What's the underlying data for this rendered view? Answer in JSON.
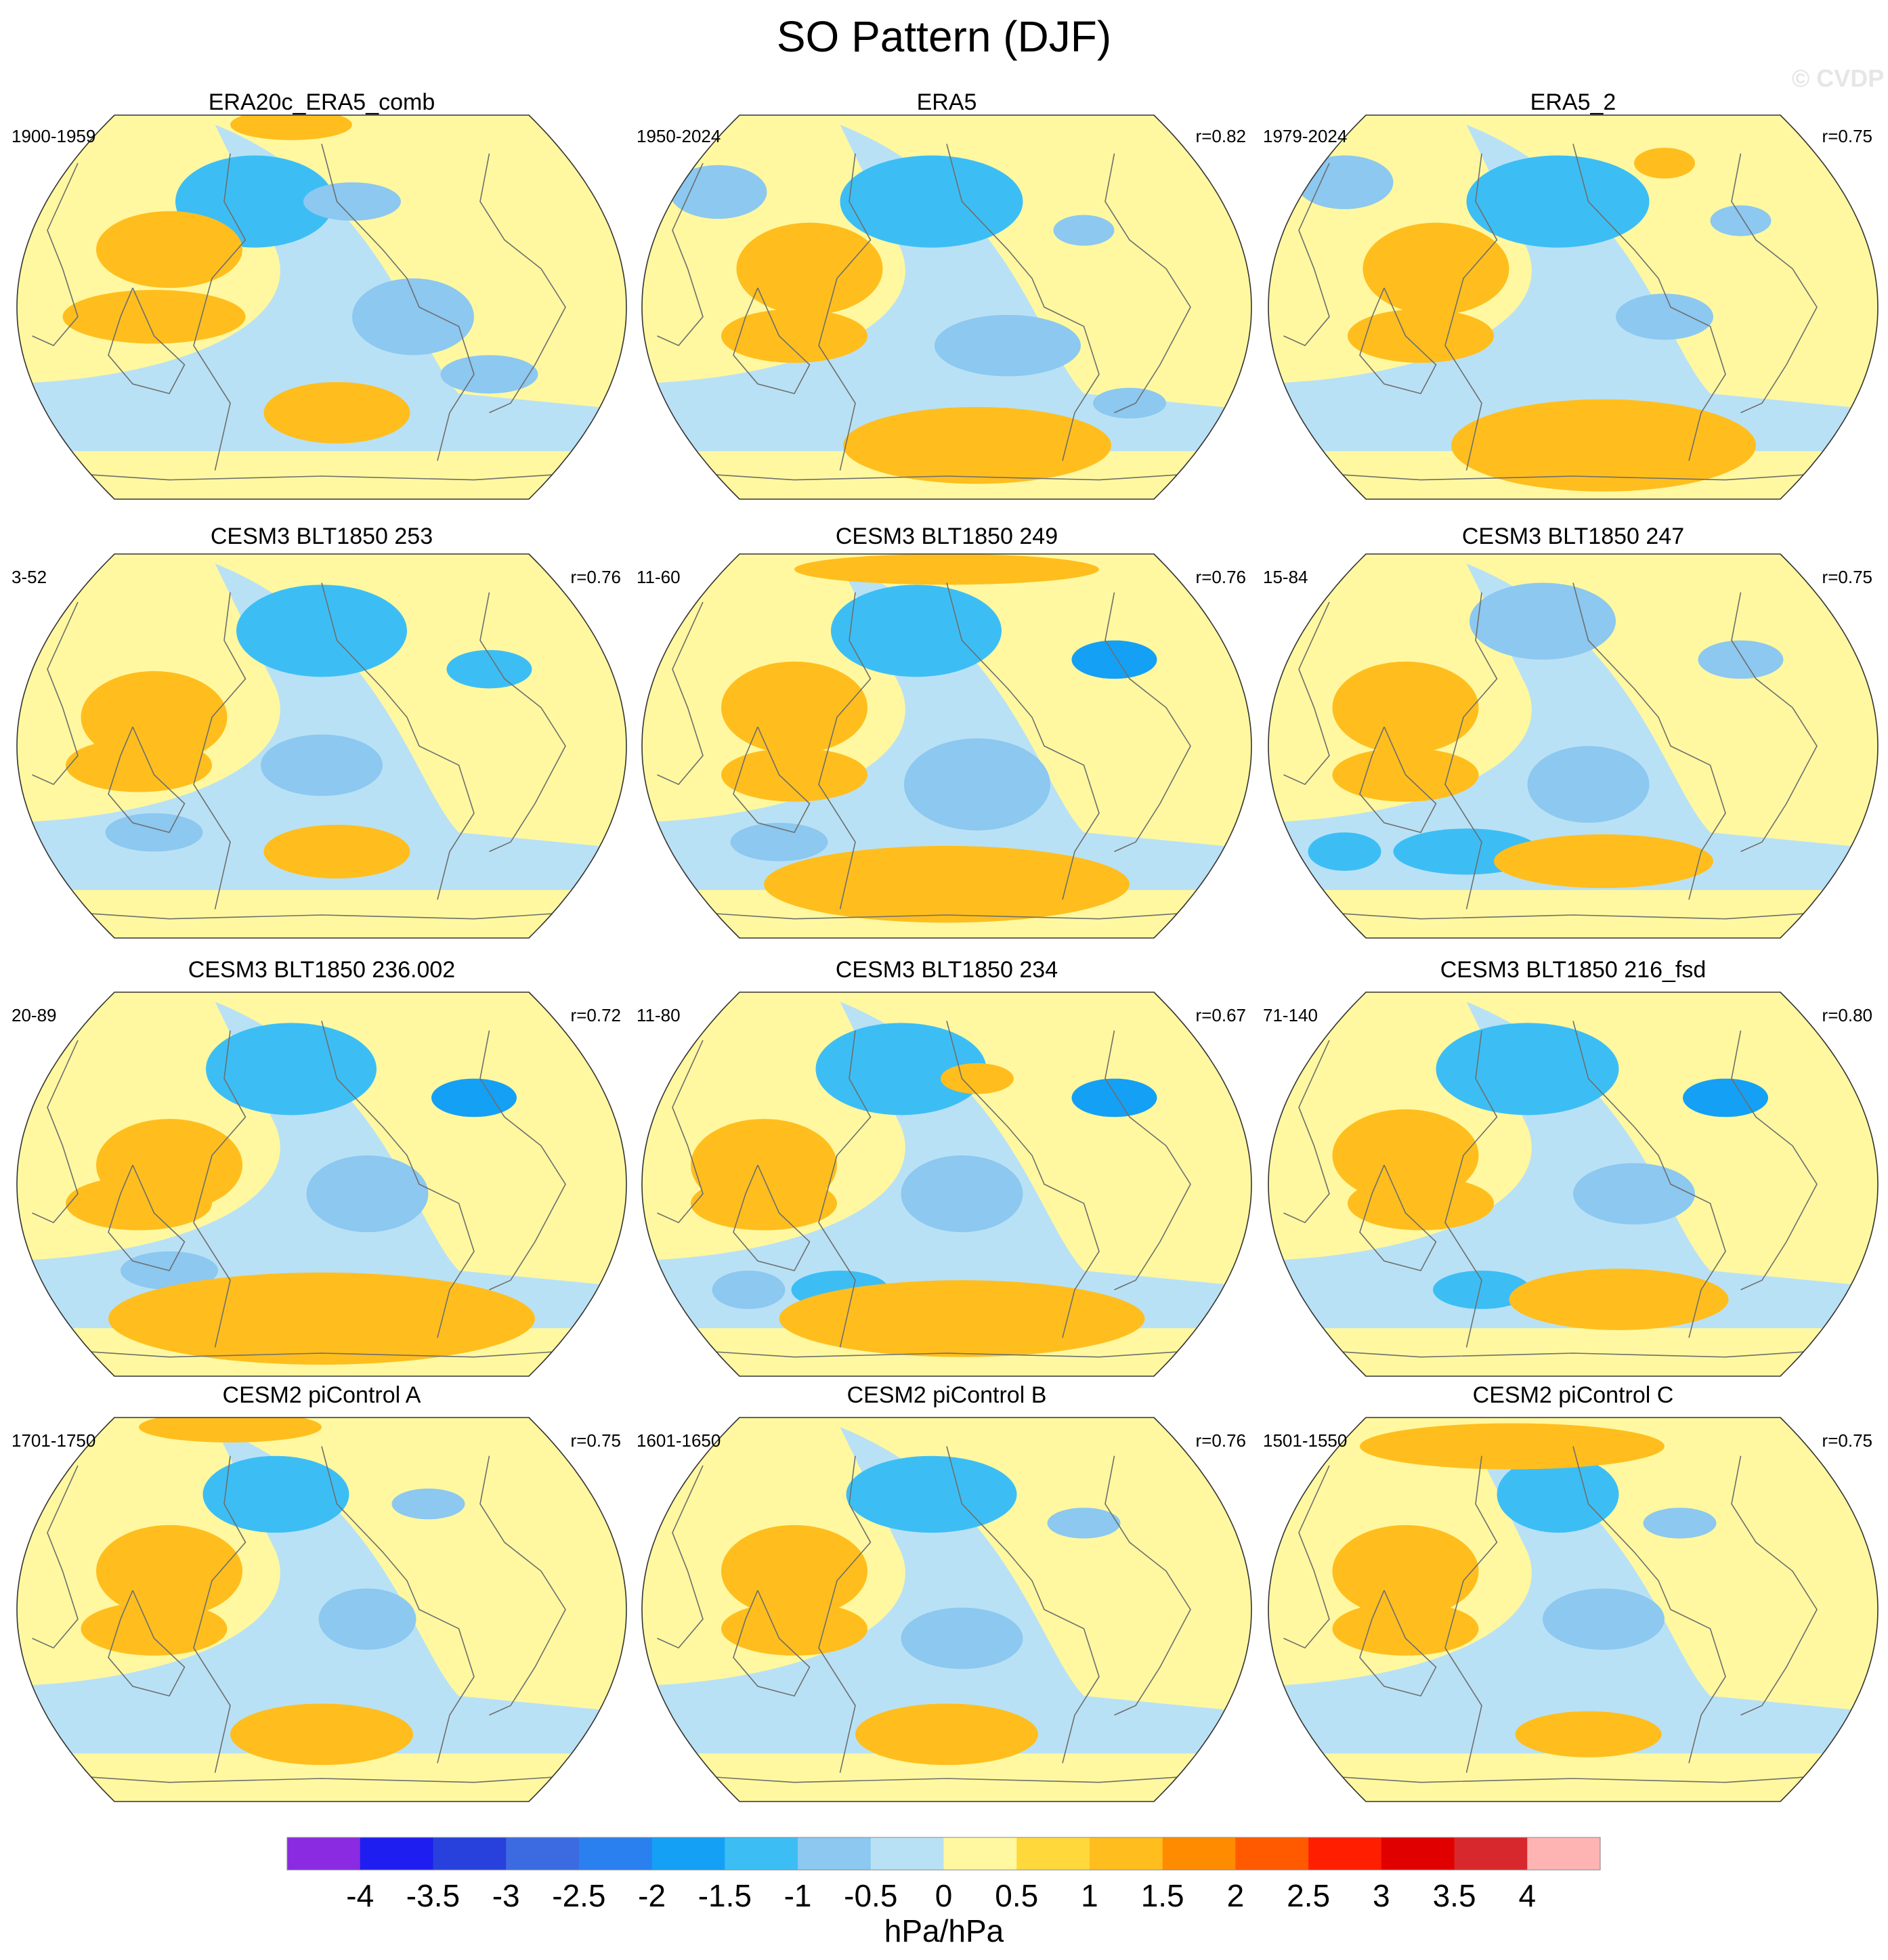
{
  "figure": {
    "title": "SO Pattern (DJF)",
    "watermark": "© CVDP"
  },
  "chart_data": {
    "type": "map-panels",
    "projection": "robinson",
    "colorbar": {
      "label": "hPa/hPa",
      "tick_labels": [
        "-4",
        "-3.5",
        "-3",
        "-2.5",
        "-2",
        "-1.5",
        "-1",
        "-0.5",
        "0",
        "0.5",
        "1",
        "1.5",
        "2",
        "2.5",
        "3",
        "3.5",
        "4"
      ],
      "colors": [
        "#8a2be2",
        "#1e1ef0",
        "#2840dc",
        "#3c6ae1",
        "#2b80f0",
        "#14a0f5",
        "#3cbef5",
        "#8cc8f0",
        "#b9e1f5",
        "#fff8a0",
        "#ffd83c",
        "#ffbe1e",
        "#ff8c00",
        "#ff5a00",
        "#ff1e00",
        "#e10000",
        "#d7282d",
        "#ffb4b4"
      ]
    },
    "panels": [
      {
        "title": "ERA20c_ERA5_comb",
        "years": "1900-1959",
        "r": "",
        "blobs": [
          [
            -0.22,
            0.55,
            0.07,
            0.08,
            -2.5
          ],
          [
            -0.22,
            0.55,
            0.13,
            0.12,
            -1.5
          ],
          [
            0.1,
            0.55,
            0.08,
            0.05,
            -1
          ],
          [
            0.3,
            -0.05,
            0.1,
            0.1,
            -1
          ],
          [
            0.55,
            -0.35,
            0.08,
            0.05,
            -1
          ],
          [
            -0.5,
            0.3,
            0.12,
            0.1,
            1
          ],
          [
            -0.55,
            -0.05,
            0.15,
            0.07,
            1
          ],
          [
            0.05,
            -0.55,
            0.08,
            0.05,
            1.5
          ],
          [
            0.05,
            -0.55,
            0.12,
            0.08,
            1
          ],
          [
            -0.1,
            0.95,
            0.1,
            0.04,
            1
          ]
        ]
      },
      {
        "title": "ERA5",
        "years": "1950-2024",
        "r": "r=0.82",
        "blobs": [
          [
            -0.05,
            0.55,
            0.08,
            0.08,
            -2.5
          ],
          [
            -0.05,
            0.55,
            0.15,
            0.12,
            -1.5
          ],
          [
            -0.75,
            0.6,
            0.08,
            0.07,
            -1
          ],
          [
            0.45,
            0.4,
            0.05,
            0.04,
            -1
          ],
          [
            0.2,
            -0.2,
            0.12,
            0.08,
            -1
          ],
          [
            0.6,
            -0.5,
            0.06,
            0.04,
            -1
          ],
          [
            -0.45,
            0.2,
            0.12,
            0.12,
            1
          ],
          [
            -0.5,
            -0.15,
            0.12,
            0.07,
            1
          ],
          [
            0.1,
            -0.75,
            0.1,
            0.06,
            1.5
          ],
          [
            0.1,
            -0.72,
            0.22,
            0.1,
            1
          ]
        ]
      },
      {
        "title": "ERA5_2",
        "years": "1979-2024",
        "r": "r=0.75",
        "blobs": [
          [
            -0.05,
            0.55,
            0.08,
            0.08,
            -3
          ],
          [
            -0.05,
            0.55,
            0.15,
            0.12,
            -1.5
          ],
          [
            -0.75,
            0.65,
            0.08,
            0.07,
            -1
          ],
          [
            0.55,
            0.45,
            0.05,
            0.04,
            -1
          ],
          [
            0.3,
            -0.05,
            0.08,
            0.06,
            -1
          ],
          [
            -0.45,
            0.2,
            0.12,
            0.12,
            1
          ],
          [
            -0.5,
            -0.15,
            0.12,
            0.07,
            1
          ],
          [
            0.1,
            -0.75,
            0.12,
            0.06,
            1.5
          ],
          [
            0.1,
            -0.72,
            0.25,
            0.12,
            1
          ],
          [
            0.3,
            0.75,
            0.05,
            0.04,
            1
          ]
        ]
      },
      {
        "title": "CESM3 BLT1850 253",
        "years": "3-52",
        "r": "r=0.76",
        "blobs": [
          [
            0.0,
            0.65,
            0.06,
            0.06,
            -2
          ],
          [
            0.0,
            0.6,
            0.14,
            0.12,
            -1.5
          ],
          [
            0.55,
            0.4,
            0.07,
            0.05,
            -1.5
          ],
          [
            0.0,
            -0.1,
            0.1,
            0.08,
            -1
          ],
          [
            -0.55,
            -0.45,
            0.08,
            0.05,
            -1
          ],
          [
            -0.55,
            0.15,
            0.12,
            0.12,
            1
          ],
          [
            -0.6,
            -0.1,
            0.12,
            0.07,
            1
          ],
          [
            0.05,
            -0.55,
            0.08,
            0.04,
            1.5
          ],
          [
            0.05,
            -0.55,
            0.12,
            0.07,
            1
          ]
        ]
      },
      {
        "title": "CESM3 BLT1850 249",
        "years": "11-60",
        "r": "r=0.76",
        "blobs": [
          [
            -0.1,
            0.6,
            0.06,
            0.06,
            -2
          ],
          [
            -0.1,
            0.6,
            0.14,
            0.12,
            -1.5
          ],
          [
            0.55,
            0.45,
            0.07,
            0.05,
            -2
          ],
          [
            0.1,
            -0.2,
            0.12,
            0.12,
            -1
          ],
          [
            -0.55,
            -0.5,
            0.08,
            0.05,
            -1
          ],
          [
            -0.5,
            0.2,
            0.12,
            0.12,
            1
          ],
          [
            -0.5,
            -0.15,
            0.12,
            0.07,
            1
          ],
          [
            0.0,
            0.92,
            0.25,
            0.04,
            1
          ],
          [
            0.05,
            -0.75,
            0.15,
            0.06,
            1.5
          ],
          [
            0.0,
            -0.72,
            0.3,
            0.1,
            1
          ]
        ]
      },
      {
        "title": "CESM3 BLT1850 247",
        "years": "15-84",
        "r": "r=0.75",
        "blobs": [
          [
            -0.1,
            0.7,
            0.05,
            0.04,
            -1.5
          ],
          [
            -0.1,
            0.65,
            0.12,
            0.1,
            -1
          ],
          [
            0.55,
            0.45,
            0.07,
            0.05,
            -1
          ],
          [
            0.05,
            -0.2,
            0.1,
            0.1,
            -1
          ],
          [
            -0.35,
            -0.55,
            0.12,
            0.06,
            -1.5
          ],
          [
            -0.75,
            -0.55,
            0.06,
            0.05,
            -1.5
          ],
          [
            -0.55,
            0.2,
            0.12,
            0.12,
            1
          ],
          [
            -0.55,
            -0.15,
            0.12,
            0.07,
            1
          ],
          [
            0.1,
            -0.6,
            0.12,
            0.04,
            1.5
          ],
          [
            0.1,
            -0.6,
            0.18,
            0.07,
            1
          ]
        ]
      },
      {
        "title": "CESM3 BLT1850 236.002",
        "years": "20-89",
        "r": "r=0.72",
        "blobs": [
          [
            -0.1,
            0.6,
            0.07,
            0.06,
            -2
          ],
          [
            -0.1,
            0.6,
            0.14,
            0.12,
            -1.5
          ],
          [
            0.5,
            0.45,
            0.07,
            0.05,
            -2
          ],
          [
            0.15,
            -0.05,
            0.1,
            0.1,
            -1
          ],
          [
            -0.5,
            -0.45,
            0.08,
            0.05,
            -1
          ],
          [
            -0.5,
            0.1,
            0.12,
            0.12,
            1
          ],
          [
            -0.6,
            -0.1,
            0.12,
            0.07,
            1
          ],
          [
            0.1,
            -0.65,
            0.15,
            0.06,
            1.5
          ],
          [
            0.0,
            -0.7,
            0.35,
            0.12,
            1
          ]
        ]
      },
      {
        "title": "CESM3 BLT1850 234",
        "years": "11-80",
        "r": "r=0.67",
        "blobs": [
          [
            -0.15,
            0.6,
            0.07,
            0.06,
            -2
          ],
          [
            -0.15,
            0.6,
            0.14,
            0.12,
            -1.5
          ],
          [
            0.55,
            0.45,
            0.07,
            0.05,
            -2
          ],
          [
            0.1,
            0.55,
            0.06,
            0.04,
            1
          ],
          [
            0.05,
            -0.05,
            0.1,
            0.1,
            -1
          ],
          [
            -0.35,
            -0.55,
            0.08,
            0.05,
            -1.5
          ],
          [
            -0.65,
            -0.55,
            0.06,
            0.05,
            -1
          ],
          [
            -0.6,
            0.1,
            0.12,
            0.12,
            1
          ],
          [
            -0.6,
            -0.1,
            0.12,
            0.07,
            1
          ],
          [
            0.1,
            -0.7,
            0.15,
            0.06,
            1.5
          ],
          [
            0.05,
            -0.7,
            0.3,
            0.1,
            1
          ]
        ]
      },
      {
        "title": "CESM3 BLT1850 216_fsd",
        "years": "71-140",
        "r": "r=0.80",
        "blobs": [
          [
            -0.15,
            0.6,
            0.07,
            0.06,
            -2
          ],
          [
            -0.15,
            0.6,
            0.15,
            0.12,
            -1.5
          ],
          [
            0.5,
            0.45,
            0.07,
            0.05,
            -2
          ],
          [
            0.2,
            -0.05,
            0.1,
            0.08,
            -1
          ],
          [
            -0.3,
            -0.55,
            0.08,
            0.05,
            -1.5
          ],
          [
            -0.55,
            0.15,
            0.12,
            0.12,
            1
          ],
          [
            -0.5,
            -0.1,
            0.12,
            0.07,
            1
          ],
          [
            0.15,
            -0.6,
            0.12,
            0.05,
            1.5
          ],
          [
            0.15,
            -0.6,
            0.18,
            0.08,
            1
          ]
        ]
      },
      {
        "title": "CESM2 piControl A",
        "years": "1701-1750",
        "r": "r=0.75",
        "blobs": [
          [
            -0.15,
            0.6,
            0.06,
            0.06,
            -2
          ],
          [
            -0.15,
            0.6,
            0.12,
            0.1,
            -1.5
          ],
          [
            0.35,
            0.55,
            0.06,
            0.04,
            -1
          ],
          [
            0.15,
            -0.05,
            0.08,
            0.08,
            -1
          ],
          [
            -0.5,
            0.2,
            0.12,
            0.12,
            1
          ],
          [
            -0.55,
            -0.1,
            0.12,
            0.07,
            1
          ],
          [
            0.0,
            -0.65,
            0.1,
            0.06,
            1.5
          ],
          [
            0.0,
            -0.65,
            0.15,
            0.08,
            1
          ],
          [
            -0.3,
            0.95,
            0.15,
            0.04,
            1
          ]
        ]
      },
      {
        "title": "CESM2 piControl B",
        "years": "1601-1650",
        "r": "r=0.76",
        "blobs": [
          [
            -0.05,
            0.6,
            0.06,
            0.06,
            -2
          ],
          [
            -0.05,
            0.6,
            0.14,
            0.1,
            -1.5
          ],
          [
            0.45,
            0.45,
            0.06,
            0.04,
            -1
          ],
          [
            0.05,
            -0.15,
            0.1,
            0.08,
            -1
          ],
          [
            -0.5,
            0.2,
            0.12,
            0.12,
            1
          ],
          [
            -0.5,
            -0.1,
            0.12,
            0.07,
            1
          ],
          [
            0.0,
            -0.65,
            0.1,
            0.06,
            1.5
          ],
          [
            0.0,
            -0.65,
            0.15,
            0.08,
            1
          ]
        ]
      },
      {
        "title": "CESM2 piControl C",
        "years": "1501-1550",
        "r": "r=0.75",
        "blobs": [
          [
            -0.05,
            0.6,
            0.05,
            0.06,
            -2
          ],
          [
            -0.05,
            0.6,
            0.1,
            0.1,
            -1.5
          ],
          [
            0.35,
            0.45,
            0.06,
            0.04,
            -1
          ],
          [
            0.1,
            -0.05,
            0.1,
            0.08,
            -1
          ],
          [
            -0.55,
            0.2,
            0.12,
            0.12,
            1
          ],
          [
            -0.55,
            -0.1,
            0.12,
            0.07,
            1
          ],
          [
            0.05,
            -0.65,
            0.12,
            0.06,
            1
          ],
          [
            -0.2,
            0.85,
            0.25,
            0.06,
            1
          ]
        ]
      }
    ]
  }
}
